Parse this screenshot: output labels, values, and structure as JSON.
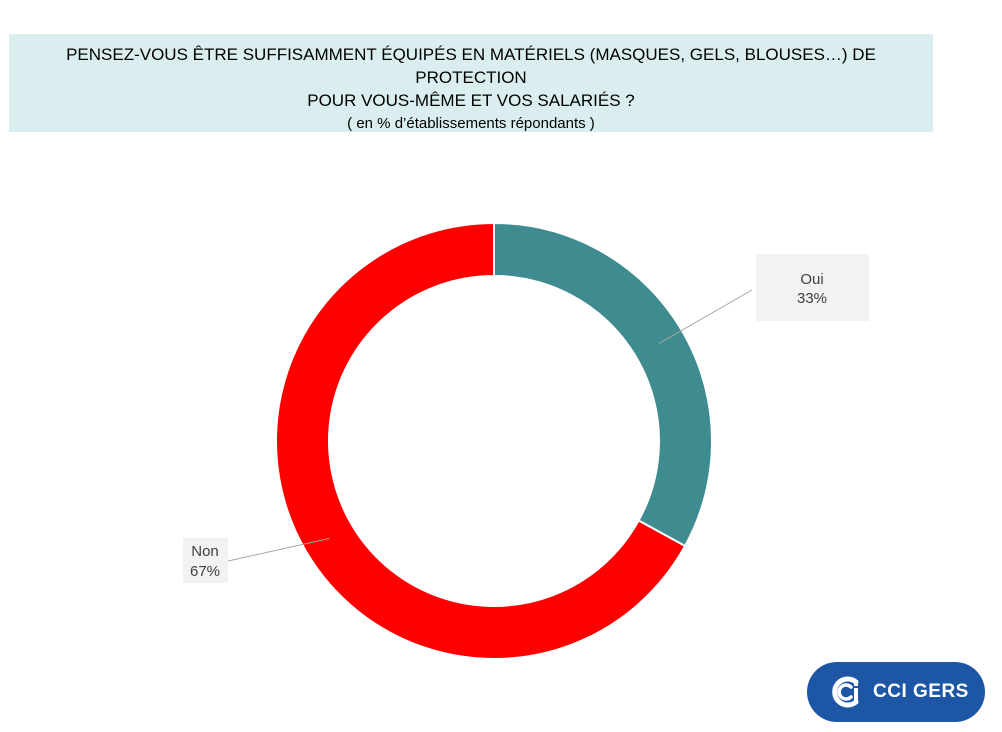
{
  "header": {
    "title_line1": "PENSEZ-VOUS ÊTRE SUFFISAMMENT ÉQUIPÉS EN MATÉRIELS (MASQUES, GELS, BLOUSES…) DE PROTECTION",
    "title_line2": "POUR VOUS-MÊME ET VOS SALARIÉS ?",
    "subtitle": "(  en % d’établissements répondants )"
  },
  "chart_data": {
    "type": "pie",
    "style": "donut",
    "slices": [
      {
        "name": "Oui",
        "value": 33,
        "label": "33%",
        "color": "#3e8b90"
      },
      {
        "name": "Non",
        "value": 67,
        "label": "67%",
        "color": "#ff0000"
      }
    ],
    "start_angle_deg": 0,
    "direction": "clockwise",
    "legend": "none",
    "label_box_color": "#f2f2f2",
    "leader_line_color": "#a6a6a6"
  },
  "logo": {
    "text": "CCI GERS",
    "color": "#1d56a4"
  }
}
